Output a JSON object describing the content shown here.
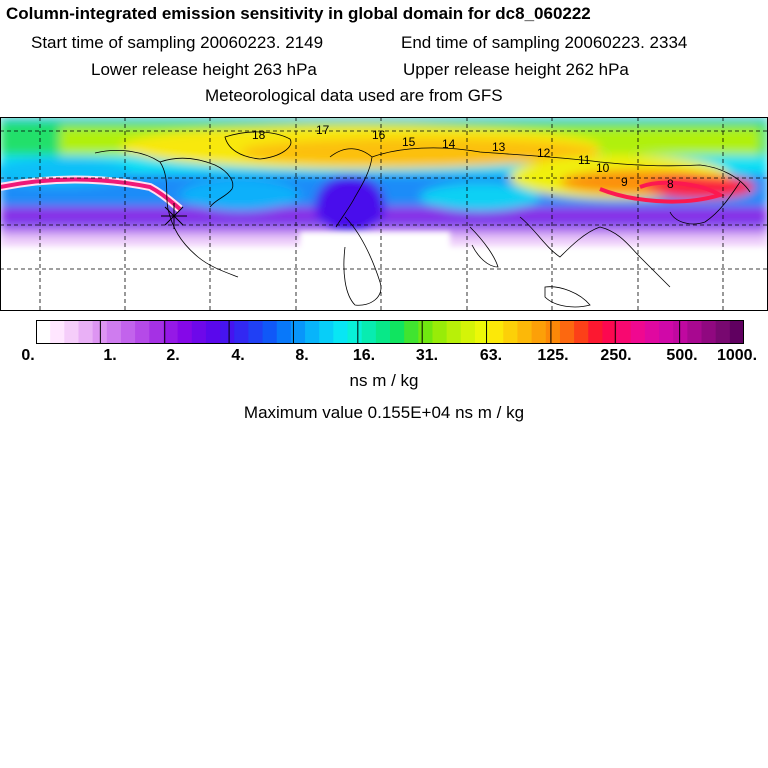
{
  "header": {
    "title": "Column-integrated emission sensitivity in global domain for dc8_060222",
    "start_time": "Start time of sampling 20060223.  2149",
    "end_time": "End time of sampling 20060223.  2334",
    "lower_release": "Lower release height  263 hPa",
    "upper_release": "Upper release height  262 hPa",
    "met_data": "Meteorological data used are from GFS"
  },
  "map": {
    "trajectory_labels": [
      "18",
      "17",
      "16",
      "15",
      "14",
      "13",
      "12",
      "11",
      "10",
      "9",
      "8"
    ]
  },
  "colorbar": {
    "tick_labels": [
      "0.",
      "1.",
      "2.",
      "4.",
      "8.",
      "16.",
      "31.",
      "63.",
      "125.",
      "250.",
      "500.",
      "1000."
    ],
    "units": "ns m / kg",
    "colors": [
      "#ffffff",
      "#ffe6ff",
      "#f5cdfa",
      "#e9b0f6",
      "#dd95f2",
      "#cf7cef",
      "#c263ec",
      "#b54ae8",
      "#a531e4",
      "#9519e6",
      "#8508e8",
      "#6e08ea",
      "#5a08ec",
      "#4614ef",
      "#3228f2",
      "#2040f5",
      "#1058f8",
      "#0878fa",
      "#0896fa",
      "#08b4fa",
      "#08cef8",
      "#08e6f4",
      "#08f0d8",
      "#08ecb0",
      "#08e888",
      "#10e460",
      "#40e430",
      "#70e810",
      "#98ec08",
      "#b8f008",
      "#d4f408",
      "#ecf808",
      "#fce808",
      "#fcd008",
      "#fcb808",
      "#fca008",
      "#fc8808",
      "#fc6810",
      "#fc4018",
      "#fc1830",
      "#fc0850",
      "#f80870",
      "#f00890",
      "#e008a0",
      "#d008a8",
      "#c008a0",
      "#a80890",
      "#900880",
      "#780870",
      "#600060"
    ],
    "accent_colors": {
      "trajectory": "#f01878",
      "trajectory_edge": "#ffe8f4",
      "release_marker": "#000000"
    }
  },
  "footer": {
    "max_value": "Maximum value  0.155E+04 ns m / kg"
  }
}
